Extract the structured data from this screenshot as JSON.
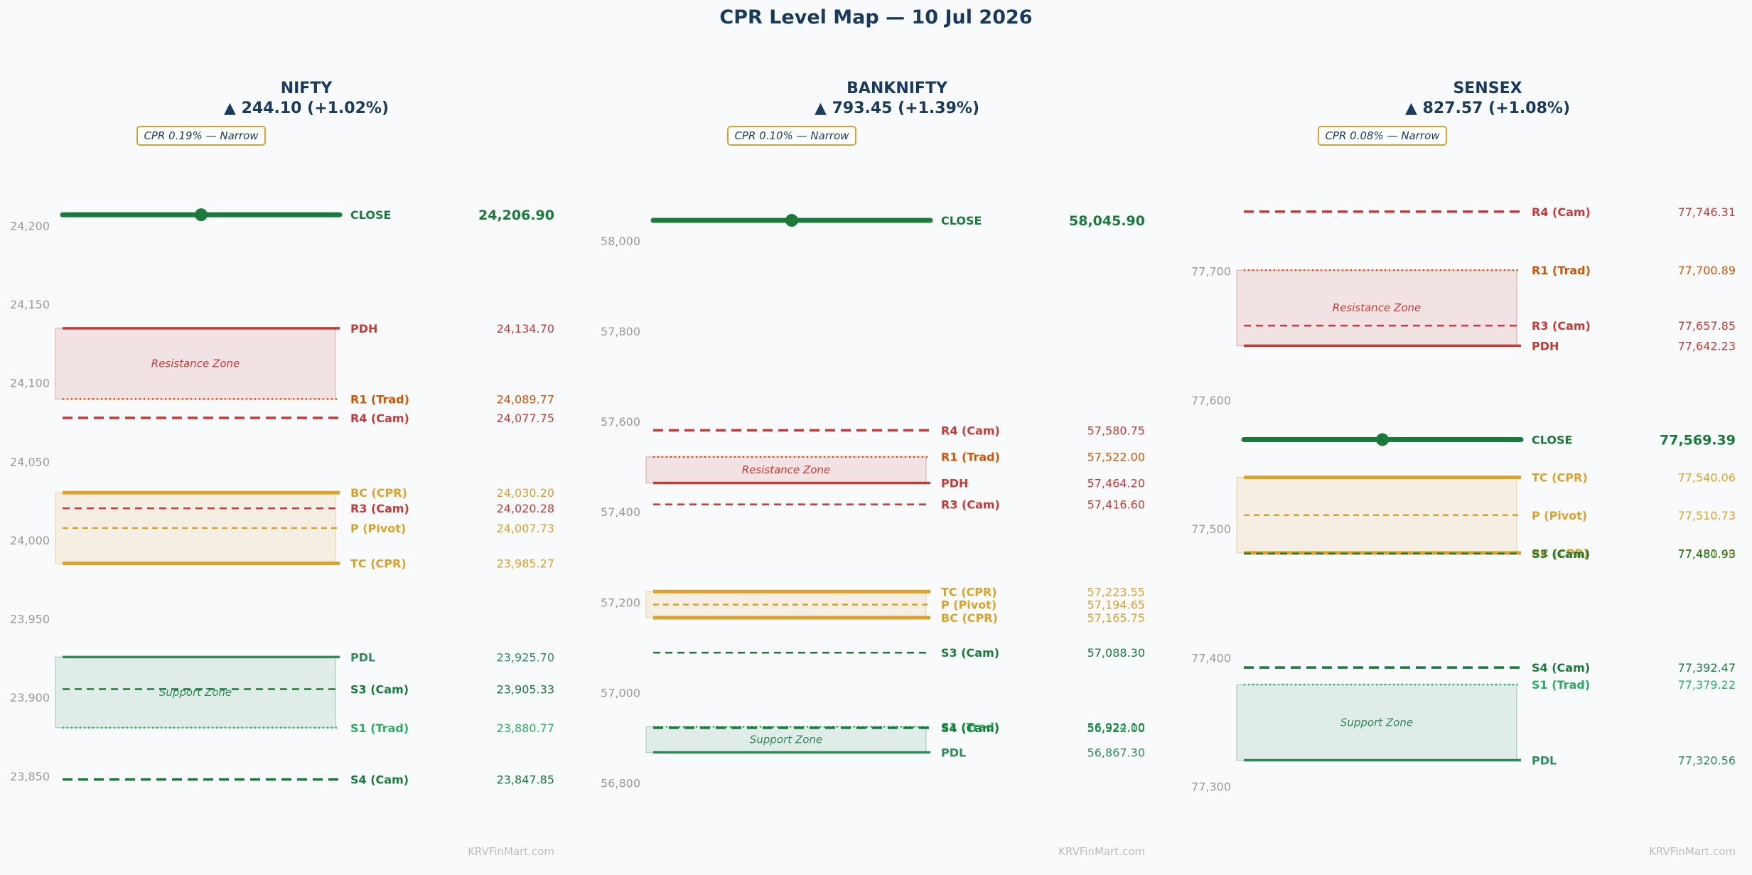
{
  "title": "CPR Level Map — 10 Jul 2026",
  "watermark": "KRVFinMart.com",
  "colors": {
    "close": "#1a7a3a",
    "resistance": "#c53a35",
    "r1_trad": "#d35400",
    "cpr": "#daa22a",
    "support": "#1a7a3a",
    "s1_trad": "#27ae60",
    "pdl": "#2e8b57",
    "title": "#1a3a5c",
    "tick": "#999999"
  },
  "chart_data": [
    {
      "type": "level-map",
      "index": "NIFTY",
      "change": "▲ 244.10 (+1.02%)",
      "cpr_badge": "CPR 0.19% — Narrow",
      "ylim": [
        23840,
        24216
      ],
      "yticks": [
        23850,
        23900,
        23950,
        24000,
        24050,
        24100,
        24150,
        24200
      ],
      "ytick_labels": [
        "23,850",
        "23,900",
        "23,950",
        "24,000",
        "24,050",
        "24,100",
        "24,150",
        "24,200"
      ],
      "zones": [
        {
          "label": "Resistance Zone",
          "kind": "resistance",
          "from": 24089.77,
          "to": 24134.7
        },
        {
          "label": "",
          "kind": "cpr",
          "from": 23985.27,
          "to": 24030.2
        },
        {
          "label": "Support Zone",
          "kind": "support",
          "from": 23880.77,
          "to": 23925.7
        }
      ],
      "levels": [
        {
          "label": "CLOSE",
          "value": 24206.9,
          "value_text": "24,206.90",
          "style": "close",
          "color": "close"
        },
        {
          "label": "PDH",
          "value": 24134.7,
          "value_text": "24,134.70",
          "style": "solid",
          "color": "resistance"
        },
        {
          "label": "R1 (Trad)",
          "value": 24089.77,
          "value_text": "24,089.77",
          "style": "dotted",
          "color": "r1_trad"
        },
        {
          "label": "R4 (Cam)",
          "value": 24077.75,
          "value_text": "24,077.75",
          "style": "dashed",
          "color": "resistance"
        },
        {
          "label": "BC (CPR)",
          "value": 24030.2,
          "value_text": "24,030.20",
          "style": "cpr-edge",
          "color": "cpr"
        },
        {
          "label": "R3 (Cam)",
          "value": 24020.28,
          "value_text": "24,020.28",
          "style": "dashed-thin",
          "color": "resistance"
        },
        {
          "label": "P (Pivot)",
          "value": 24007.73,
          "value_text": "24,007.73",
          "style": "pivot",
          "color": "cpr"
        },
        {
          "label": "TC (CPR)",
          "value": 23985.27,
          "value_text": "23,985.27",
          "style": "cpr-edge",
          "color": "cpr"
        },
        {
          "label": "PDL",
          "value": 23925.7,
          "value_text": "23,925.70",
          "style": "solid",
          "color": "pdl"
        },
        {
          "label": "S3 (Cam)",
          "value": 23905.33,
          "value_text": "23,905.33",
          "style": "dashed-thin",
          "color": "support"
        },
        {
          "label": "S1 (Trad)",
          "value": 23880.77,
          "value_text": "23,880.77",
          "style": "dotted",
          "color": "s1_trad"
        },
        {
          "label": "S4 (Cam)",
          "value": 23847.85,
          "value_text": "23,847.85",
          "style": "dashed",
          "color": "support"
        }
      ]
    },
    {
      "type": "level-map",
      "index": "BANKNIFTY",
      "change": "▲ 793.45 (+1.39%)",
      "cpr_badge": "CPR 0.10% — Narrow",
      "ylim": [
        56780,
        58090
      ],
      "yticks": [
        56800,
        57000,
        57200,
        57400,
        57600,
        57800,
        58000
      ],
      "ytick_labels": [
        "56,800",
        "57,000",
        "57,200",
        "57,400",
        "57,600",
        "57,800",
        "58,000"
      ],
      "zones": [
        {
          "label": "Resistance Zone",
          "kind": "resistance",
          "from": 57464.2,
          "to": 57522.0
        },
        {
          "label": "",
          "kind": "cpr",
          "from": 57165.75,
          "to": 57223.55
        },
        {
          "label": "Support Zone",
          "kind": "support",
          "from": 56867.3,
          "to": 56924.1
        }
      ],
      "levels": [
        {
          "label": "CLOSE",
          "value": 58045.9,
          "value_text": "58,045.90",
          "style": "close",
          "color": "close"
        },
        {
          "label": "R4 (Cam)",
          "value": 57580.75,
          "value_text": "57,580.75",
          "style": "dashed",
          "color": "resistance"
        },
        {
          "label": "R1 (Trad)",
          "value": 57522.0,
          "value_text": "57,522.00",
          "style": "dotted",
          "color": "r1_trad"
        },
        {
          "label": "PDH",
          "value": 57464.2,
          "value_text": "57,464.20",
          "style": "solid",
          "color": "resistance"
        },
        {
          "label": "R3 (Cam)",
          "value": 57416.6,
          "value_text": "57,416.60",
          "style": "dashed-thin",
          "color": "resistance"
        },
        {
          "label": "TC (CPR)",
          "value": 57223.55,
          "value_text": "57,223.55",
          "style": "cpr-edge",
          "color": "cpr"
        },
        {
          "label": "P (Pivot)",
          "value": 57194.65,
          "value_text": "57,194.65",
          "style": "pivot",
          "color": "cpr"
        },
        {
          "label": "BC (CPR)",
          "value": 57165.75,
          "value_text": "57,165.75",
          "style": "cpr-edge",
          "color": "cpr"
        },
        {
          "label": "S3 (Cam)",
          "value": 57088.3,
          "value_text": "57,088.30",
          "style": "dashed-thin",
          "color": "support"
        },
        {
          "label": "S1 (Trad)",
          "value": 56924.1,
          "value_text": "56,924.10",
          "style": "dotted",
          "color": "s1_trad"
        },
        {
          "label": "S4 (Cam)",
          "value": 56922.0,
          "value_text": "56,922.00",
          "style": "dashed",
          "color": "support"
        },
        {
          "label": "PDL",
          "value": 56867.3,
          "value_text": "56,867.30",
          "style": "solid",
          "color": "pdl"
        }
      ]
    },
    {
      "type": "level-map",
      "index": "SENSEX",
      "change": "▲ 827.57 (+1.08%)",
      "cpr_badge": "CPR 0.08% — Narrow",
      "ylim": [
        77296,
        77755
      ],
      "yticks": [
        77300,
        77400,
        77500,
        77600,
        77700
      ],
      "ytick_labels": [
        "77,300",
        "77,400",
        "77,500",
        "77,600",
        "77,700"
      ],
      "zones": [
        {
          "label": "Resistance Zone",
          "kind": "resistance",
          "from": 77642.23,
          "to": 77700.89
        },
        {
          "label": "",
          "kind": "cpr",
          "from": 77481.4,
          "to": 77540.06
        },
        {
          "label": "Support Zone",
          "kind": "support",
          "from": 77320.56,
          "to": 77379.22
        }
      ],
      "levels": [
        {
          "label": "R4 (Cam)",
          "value": 77746.31,
          "value_text": "77,746.31",
          "style": "dashed",
          "color": "resistance"
        },
        {
          "label": "R1 (Trad)",
          "value": 77700.89,
          "value_text": "77,700.89",
          "style": "dotted",
          "color": "r1_trad"
        },
        {
          "label": "R3 (Cam)",
          "value": 77657.85,
          "value_text": "77,657.85",
          "style": "dashed-thin",
          "color": "resistance"
        },
        {
          "label": "PDH",
          "value": 77642.23,
          "value_text": "77,642.23",
          "style": "solid",
          "color": "resistance"
        },
        {
          "label": "CLOSE",
          "value": 77569.39,
          "value_text": "77,569.39",
          "style": "close",
          "color": "close"
        },
        {
          "label": "TC (CPR)",
          "value": 77540.06,
          "value_text": "77,540.06",
          "style": "cpr-edge",
          "color": "cpr"
        },
        {
          "label": "P (Pivot)",
          "value": 77510.73,
          "value_text": "77,510.73",
          "style": "pivot",
          "color": "cpr"
        },
        {
          "label": "BC (CPR)",
          "value": 77481.4,
          "value_text": "77,481.40",
          "style": "cpr-edge",
          "color": "cpr"
        },
        {
          "label": "S3 (Cam)",
          "value": 77480.93,
          "value_text": "77,480.93",
          "style": "dashed-thin",
          "color": "support"
        },
        {
          "label": "S4 (Cam)",
          "value": 77392.47,
          "value_text": "77,392.47",
          "style": "dashed",
          "color": "support"
        },
        {
          "label": "S1 (Trad)",
          "value": 77379.22,
          "value_text": "77,379.22",
          "style": "dotted",
          "color": "s1_trad"
        },
        {
          "label": "PDL",
          "value": 77320.56,
          "value_text": "77,320.56",
          "style": "solid",
          "color": "pdl"
        }
      ]
    }
  ]
}
